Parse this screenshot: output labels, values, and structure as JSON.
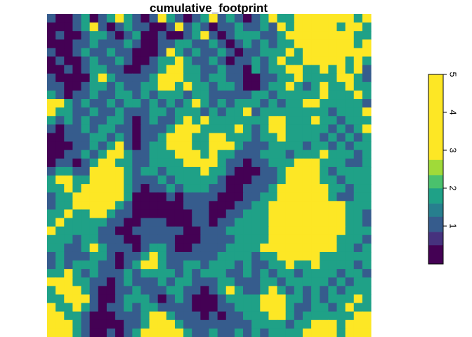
{
  "chart_data": {
    "type": "heatmap",
    "title": "cumulative_footprint",
    "xlabel": "",
    "ylabel": "",
    "grid": false,
    "axes_visible": false,
    "rows": 38,
    "cols": 38,
    "value_range": [
      0,
      5
    ],
    "legend": {
      "placement": "right",
      "orientation": "vertical",
      "ticks": [
        "1",
        "2",
        "3",
        "4",
        "5"
      ],
      "tick_values": [
        1,
        2,
        3,
        4,
        5
      ],
      "bins": [
        {
          "from": 0.0,
          "to": 0.5,
          "color": "#440154"
        },
        {
          "from": 0.5,
          "to": 0.85,
          "color": "#46327e"
        },
        {
          "from": 0.85,
          "to": 1.25,
          "color": "#365c8d"
        },
        {
          "from": 1.25,
          "to": 1.6,
          "color": "#277f8e"
        },
        {
          "from": 1.6,
          "to": 2.0,
          "color": "#1fa187"
        },
        {
          "from": 2.0,
          "to": 2.35,
          "color": "#4ac16d"
        },
        {
          "from": 2.35,
          "to": 2.75,
          "color": "#a0da39"
        },
        {
          "from": 2.75,
          "to": 5.0,
          "color": "#fde725"
        }
      ]
    },
    "grid_values": [
      [
        1,
        0,
        0,
        1,
        2,
        0,
        1,
        2,
        3,
        2,
        1,
        0,
        1,
        3,
        2,
        1,
        0,
        1,
        2,
        3,
        1,
        2,
        1,
        0,
        1,
        2,
        3,
        2,
        2,
        3,
        5,
        5,
        3,
        3,
        4,
        3,
        2,
        3
      ],
      [
        0,
        0,
        0,
        1,
        2,
        3,
        1,
        0,
        1,
        2,
        1,
        1,
        0,
        0,
        1,
        3,
        1,
        2,
        1,
        0,
        1,
        1,
        2,
        1,
        1,
        2,
        1,
        3,
        2,
        3,
        4,
        4,
        5,
        3,
        2,
        3,
        3,
        2
      ],
      [
        0,
        1,
        0,
        0,
        1,
        2,
        2,
        1,
        0,
        1,
        2,
        0,
        0,
        1,
        0,
        0,
        1,
        2,
        3,
        1,
        0,
        1,
        2,
        2,
        2,
        1,
        1,
        2,
        3,
        5,
        5,
        5,
        5,
        4,
        3,
        3,
        2,
        2
      ],
      [
        0,
        0,
        0,
        1,
        1,
        2,
        1,
        1,
        1,
        2,
        1,
        0,
        0,
        1,
        1,
        2,
        2,
        1,
        1,
        2,
        1,
        0,
        1,
        2,
        1,
        2,
        1,
        2,
        2,
        4,
        5,
        5,
        5,
        4,
        3,
        3,
        2,
        3
      ],
      [
        1,
        0,
        0,
        1,
        2,
        1,
        1,
        2,
        1,
        1,
        0,
        0,
        0,
        1,
        3,
        2,
        1,
        2,
        1,
        1,
        2,
        1,
        0,
        1,
        1,
        2,
        2,
        2,
        3,
        2,
        3,
        4,
        4,
        3,
        4,
        3,
        3,
        3
      ],
      [
        0,
        1,
        0,
        0,
        1,
        2,
        1,
        1,
        2,
        1,
        0,
        0,
        1,
        2,
        2,
        3,
        2,
        1,
        1,
        2,
        1,
        0,
        1,
        1,
        2,
        1,
        2,
        3,
        2,
        2,
        3,
        3,
        3,
        3,
        3,
        2,
        3,
        2
      ],
      [
        0,
        0,
        1,
        0,
        1,
        2,
        2,
        1,
        1,
        0,
        0,
        1,
        1,
        2,
        3,
        3,
        2,
        2,
        1,
        1,
        2,
        1,
        1,
        0,
        2,
        1,
        2,
        2,
        3,
        3,
        2,
        2,
        3,
        2,
        3,
        2,
        3,
        1
      ],
      [
        1,
        0,
        0,
        0,
        0,
        2,
        3,
        2,
        1,
        1,
        1,
        1,
        2,
        3,
        3,
        3,
        2,
        2,
        1,
        2,
        2,
        1,
        1,
        0,
        0,
        1,
        1,
        2,
        2,
        3,
        2,
        2,
        2,
        2,
        3,
        3,
        2,
        1
      ],
      [
        1,
        1,
        0,
        0,
        1,
        2,
        2,
        1,
        2,
        1,
        1,
        2,
        2,
        3,
        3,
        2,
        3,
        2,
        2,
        1,
        2,
        2,
        1,
        0,
        0,
        1,
        2,
        2,
        3,
        2,
        1,
        2,
        3,
        2,
        2,
        3,
        2,
        2
      ],
      [
        2,
        1,
        0,
        1,
        1,
        2,
        1,
        1,
        2,
        2,
        1,
        2,
        1,
        2,
        2,
        2,
        1,
        2,
        2,
        1,
        1,
        1,
        1,
        1,
        2,
        2,
        1,
        2,
        2,
        2,
        2,
        2,
        3,
        2,
        2,
        2,
        3,
        2
      ],
      [
        4,
        3,
        2,
        1,
        2,
        1,
        1,
        2,
        1,
        2,
        2,
        1,
        2,
        1,
        2,
        1,
        2,
        3,
        2,
        1,
        2,
        1,
        2,
        2,
        2,
        1,
        2,
        1,
        2,
        2,
        3,
        3,
        2,
        2,
        2,
        2,
        2,
        1
      ],
      [
        3,
        2,
        2,
        1,
        1,
        2,
        1,
        1,
        2,
        1,
        1,
        1,
        2,
        2,
        1,
        2,
        2,
        2,
        1,
        2,
        1,
        2,
        2,
        3,
        1,
        2,
        2,
        2,
        2,
        2,
        2,
        2,
        2,
        1,
        2,
        2,
        2,
        3
      ],
      [
        2,
        1,
        2,
        1,
        2,
        1,
        1,
        2,
        2,
        1,
        0,
        1,
        2,
        1,
        1,
        2,
        3,
        2,
        3,
        2,
        2,
        2,
        2,
        2,
        2,
        2,
        4,
        4,
        2,
        2,
        2,
        3,
        2,
        2,
        1,
        2,
        2,
        2
      ],
      [
        1,
        0,
        1,
        1,
        2,
        1,
        2,
        2,
        1,
        1,
        0,
        1,
        1,
        1,
        2,
        3,
        3,
        3,
        2,
        2,
        2,
        2,
        3,
        2,
        1,
        2,
        3,
        3,
        2,
        2,
        2,
        2,
        2,
        1,
        2,
        1,
        2,
        3
      ],
      [
        0,
        0,
        1,
        1,
        1,
        2,
        2,
        1,
        2,
        1,
        0,
        1,
        1,
        2,
        3,
        3,
        3,
        2,
        2,
        3,
        3,
        2,
        2,
        2,
        1,
        2,
        2,
        3,
        2,
        2,
        2,
        2,
        1,
        2,
        1,
        2,
        1,
        2
      ],
      [
        0,
        0,
        0,
        1,
        1,
        2,
        1,
        2,
        3,
        1,
        0,
        1,
        2,
        2,
        3,
        3,
        3,
        2,
        2,
        3,
        3,
        3,
        2,
        1,
        1,
        1,
        2,
        2,
        2,
        2,
        1,
        2,
        2,
        1,
        2,
        1,
        2,
        2
      ],
      [
        0,
        0,
        1,
        1,
        2,
        1,
        2,
        3,
        3,
        2,
        1,
        1,
        2,
        2,
        2,
        3,
        3,
        3,
        2,
        3,
        2,
        2,
        1,
        1,
        1,
        2,
        2,
        2,
        1,
        2,
        2,
        2,
        3,
        2,
        2,
        2,
        1,
        2
      ],
      [
        0,
        1,
        1,
        0,
        1,
        2,
        3,
        3,
        2,
        2,
        1,
        1,
        2,
        2,
        2,
        2,
        3,
        3,
        3,
        3,
        2,
        1,
        1,
        0,
        1,
        1,
        2,
        2,
        2,
        3,
        3,
        3,
        2,
        2,
        2,
        1,
        1,
        2
      ],
      [
        1,
        2,
        2,
        1,
        1,
        3,
        4,
        4,
        3,
        2,
        1,
        2,
        2,
        1,
        2,
        2,
        2,
        2,
        3,
        2,
        2,
        1,
        0,
        0,
        0,
        1,
        1,
        2,
        3,
        4,
        4,
        3,
        2,
        1,
        2,
        2,
        2,
        2
      ],
      [
        2,
        3,
        3,
        2,
        2,
        4,
        5,
        4,
        3,
        2,
        1,
        1,
        1,
        2,
        1,
        2,
        2,
        2,
        2,
        2,
        1,
        0,
        0,
        0,
        1,
        1,
        1,
        2,
        4,
        5,
        5,
        4,
        2,
        2,
        1,
        2,
        2,
        2
      ],
      [
        2,
        2,
        3,
        2,
        3,
        4,
        5,
        5,
        4,
        2,
        1,
        0,
        1,
        1,
        2,
        1,
        2,
        2,
        2,
        1,
        1,
        0,
        0,
        1,
        1,
        1,
        2,
        3,
        4,
        5,
        5,
        4,
        3,
        2,
        2,
        1,
        2,
        2
      ],
      [
        1,
        2,
        2,
        3,
        3,
        4,
        5,
        5,
        3,
        2,
        0,
        0,
        0,
        0,
        1,
        0,
        1,
        1,
        1,
        1,
        0,
        0,
        0,
        1,
        1,
        2,
        2,
        3,
        4,
        5,
        4,
        4,
        3,
        2,
        1,
        1,
        2,
        2
      ],
      [
        1,
        2,
        2,
        3,
        3,
        4,
        4,
        3,
        2,
        1,
        0,
        0,
        0,
        0,
        0,
        0,
        1,
        1,
        1,
        0,
        0,
        0,
        1,
        1,
        2,
        2,
        3,
        3,
        4,
        5,
        5,
        4,
        4,
        3,
        3,
        2,
        2,
        2
      ],
      [
        2,
        2,
        3,
        2,
        2,
        3,
        3,
        2,
        1,
        1,
        0,
        0,
        0,
        0,
        0,
        0,
        0,
        1,
        1,
        0,
        0,
        1,
        1,
        2,
        2,
        2,
        3,
        4,
        4,
        5,
        5,
        5,
        4,
        4,
        3,
        2,
        2,
        1
      ],
      [
        2,
        3,
        2,
        2,
        2,
        2,
        2,
        1,
        1,
        0,
        0,
        1,
        1,
        1,
        0,
        0,
        0,
        1,
        1,
        0,
        1,
        1,
        2,
        2,
        2,
        2,
        4,
        4,
        5,
        5,
        5,
        5,
        4,
        3,
        3,
        2,
        2,
        1
      ],
      [
        3,
        2,
        2,
        2,
        2,
        2,
        1,
        1,
        0,
        0,
        1,
        1,
        1,
        1,
        1,
        1,
        0,
        0,
        1,
        1,
        1,
        2,
        2,
        2,
        2,
        2,
        4,
        5,
        5,
        5,
        5,
        5,
        4,
        4,
        3,
        2,
        2,
        2
      ],
      [
        2,
        2,
        2,
        1,
        2,
        2,
        1,
        1,
        1,
        0,
        0,
        1,
        1,
        1,
        1,
        0,
        0,
        0,
        1,
        1,
        1,
        1,
        2,
        2,
        2,
        2,
        3,
        4,
        5,
        5,
        4,
        5,
        3,
        3,
        2,
        2,
        2,
        1
      ],
      [
        2,
        2,
        1,
        1,
        2,
        3,
        2,
        1,
        1,
        1,
        0,
        1,
        2,
        2,
        1,
        0,
        0,
        1,
        1,
        1,
        1,
        2,
        2,
        2,
        2,
        3,
        3,
        4,
        5,
        4,
        4,
        3,
        3,
        3,
        2,
        2,
        1,
        2
      ],
      [
        1,
        2,
        1,
        1,
        1,
        2,
        2,
        1,
        0,
        1,
        1,
        2,
        3,
        2,
        1,
        1,
        1,
        1,
        1,
        1,
        2,
        2,
        2,
        2,
        1,
        2,
        2,
        3,
        4,
        3,
        3,
        3,
        2,
        2,
        2,
        2,
        2,
        2
      ],
      [
        1,
        2,
        1,
        2,
        2,
        2,
        1,
        1,
        0,
        1,
        2,
        3,
        3,
        2,
        1,
        1,
        2,
        2,
        1,
        2,
        2,
        2,
        1,
        2,
        1,
        1,
        2,
        2,
        3,
        2,
        2,
        3,
        2,
        2,
        2,
        2,
        1,
        2
      ],
      [
        2,
        2,
        3,
        2,
        1,
        2,
        1,
        1,
        1,
        2,
        1,
        2,
        2,
        2,
        2,
        1,
        2,
        1,
        2,
        2,
        2,
        1,
        1,
        2,
        1,
        2,
        1,
        2,
        2,
        1,
        2,
        2,
        2,
        2,
        1,
        2,
        2,
        1
      ],
      [
        3,
        4,
        3,
        2,
        2,
        1,
        1,
        0,
        1,
        2,
        1,
        1,
        1,
        2,
        1,
        2,
        2,
        1,
        1,
        1,
        2,
        2,
        1,
        1,
        1,
        2,
        2,
        1,
        2,
        2,
        2,
        2,
        2,
        1,
        2,
        1,
        2,
        2
      ],
      [
        2,
        3,
        4,
        3,
        2,
        1,
        0,
        0,
        1,
        1,
        2,
        1,
        1,
        1,
        2,
        2,
        1,
        1,
        0,
        1,
        2,
        3,
        2,
        1,
        1,
        2,
        3,
        2,
        1,
        2,
        1,
        2,
        1,
        2,
        1,
        2,
        2,
        2
      ],
      [
        2,
        2,
        3,
        4,
        3,
        1,
        0,
        0,
        1,
        2,
        2,
        2,
        1,
        0,
        1,
        2,
        1,
        0,
        0,
        0,
        1,
        2,
        2,
        2,
        2,
        3,
        4,
        3,
        2,
        2,
        1,
        2,
        1,
        2,
        2,
        2,
        3,
        2
      ],
      [
        3,
        2,
        2,
        3,
        2,
        1,
        0,
        1,
        1,
        2,
        1,
        2,
        2,
        1,
        1,
        1,
        1,
        0,
        0,
        0,
        1,
        1,
        2,
        2,
        2,
        3,
        4,
        4,
        2,
        1,
        1,
        2,
        2,
        1,
        2,
        3,
        2,
        2
      ],
      [
        4,
        3,
        2,
        2,
        1,
        0,
        0,
        0,
        1,
        1,
        1,
        2,
        3,
        3,
        2,
        1,
        1,
        1,
        0,
        1,
        0,
        1,
        1,
        2,
        2,
        2,
        3,
        3,
        2,
        1,
        2,
        2,
        2,
        2,
        2,
        2,
        3,
        3
      ],
      [
        5,
        4,
        3,
        2,
        1,
        0,
        0,
        0,
        0,
        1,
        1,
        2,
        4,
        5,
        4,
        2,
        1,
        1,
        1,
        1,
        1,
        1,
        1,
        1,
        2,
        2,
        2,
        2,
        1,
        2,
        2,
        3,
        3,
        3,
        2,
        3,
        4,
        4
      ],
      [
        4,
        5,
        3,
        2,
        1,
        0,
        0,
        1,
        0,
        1,
        2,
        3,
        5,
        5,
        4,
        3,
        2,
        1,
        1,
        2,
        1,
        1,
        2,
        1,
        2,
        1,
        2,
        2,
        2,
        2,
        3,
        3,
        4,
        3,
        2,
        3,
        4,
        5
      ]
    ]
  }
}
